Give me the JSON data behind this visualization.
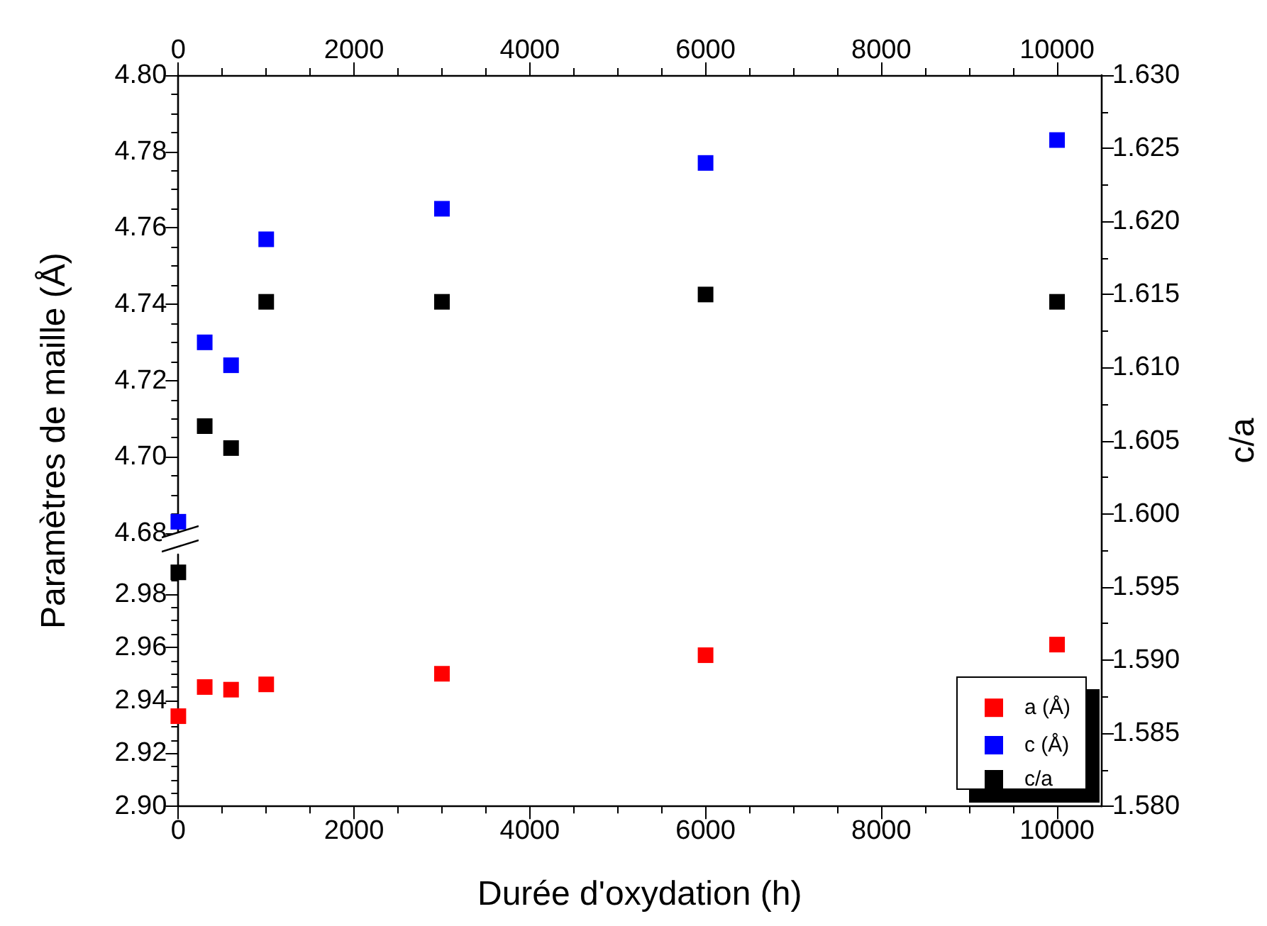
{
  "chart_data": [
    {
      "type": "scatter",
      "ylabel": "Paramètres de maille (Å)",
      "xlim": [
        0,
        10500
      ],
      "tick_labels": "y",
      "x2lim": [
        0,
        10500
      ],
      "x2ticks": [
        0,
        2000,
        4000,
        6000,
        8000,
        10000
      ],
      "ylim": [
        4.68,
        4.8
      ],
      "yticks": [
        {
          "value": 4.68,
          "label": "4.68"
        },
        {
          "value": 4.7,
          "label": "4.70"
        },
        {
          "value": 4.72,
          "label": "4.72"
        },
        {
          "value": 4.74,
          "label": "4.74"
        },
        {
          "value": 4.76,
          "label": "4.76"
        },
        {
          "value": 4.78,
          "label": "4.78"
        },
        {
          "value": 4.8,
          "label": "4.80"
        }
      ],
      "marker": "square",
      "legend": "bottom right",
      "x": [
        0,
        300,
        600,
        1000,
        3000,
        6000,
        10000
      ],
      "series": [
        {
          "name": "c (Å)",
          "color": "#0000ff",
          "values": [
            4.683,
            4.73,
            4.724,
            4.757,
            4.765,
            4.777,
            4.783
          ]
        }
      ]
    },
    {
      "type": "scatter",
      "xlabel": "Durée d'oxydation (h)",
      "xlim": [
        0,
        10500
      ],
      "xticks": [
        0,
        2000,
        4000,
        6000,
        8000,
        10000
      ],
      "ylim": [
        2.9,
        2.995
      ],
      "yticks": [
        {
          "value": 2.9,
          "label": "2.90"
        },
        {
          "value": 2.92,
          "label": "2.92"
        },
        {
          "value": 2.94,
          "label": "2.94"
        },
        {
          "value": 2.96,
          "label": "2.96"
        },
        {
          "value": 2.98,
          "label": "2.98"
        }
      ],
      "marker": "square",
      "legend": "bottom right",
      "x": [
        0,
        300,
        600,
        1000,
        3000,
        6000,
        10000
      ],
      "series": [
        {
          "name": "a (Å)",
          "color": "#ff0000",
          "values": [
            2.934,
            2.945,
            2.944,
            2.946,
            2.95,
            2.957,
            2.961
          ]
        }
      ]
    },
    {
      "type": "scatter",
      "y2label": "c/a",
      "xlim": [
        0,
        10500
      ],
      "tick_labels": "y",
      "y2lim": [
        1.58,
        1.63
      ],
      "y2ticks": [
        {
          "value": 1.58,
          "label": "1.580"
        },
        {
          "value": 1.585,
          "label": "1.585"
        },
        {
          "value": 1.59,
          "label": "1.590"
        },
        {
          "value": 1.595,
          "label": "1.595"
        },
        {
          "value": 1.6,
          "label": "1.600"
        },
        {
          "value": 1.605,
          "label": "1.605"
        },
        {
          "value": 1.61,
          "label": "1.610"
        },
        {
          "value": 1.615,
          "label": "1.615"
        },
        {
          "value": 1.62,
          "label": "1.620"
        },
        {
          "value": 1.625,
          "label": "1.625"
        },
        {
          "value": 1.63,
          "label": "1.630"
        }
      ],
      "marker": "square",
      "legend": "bottom right",
      "x": [
        0,
        300,
        600,
        1000,
        3000,
        6000,
        10000
      ],
      "series": [
        {
          "name": "c/a",
          "color": "#000000",
          "axis": "y2",
          "values": [
            1.596,
            1.606,
            1.6045,
            1.6145,
            1.6145,
            1.615,
            1.6145
          ]
        }
      ]
    }
  ]
}
